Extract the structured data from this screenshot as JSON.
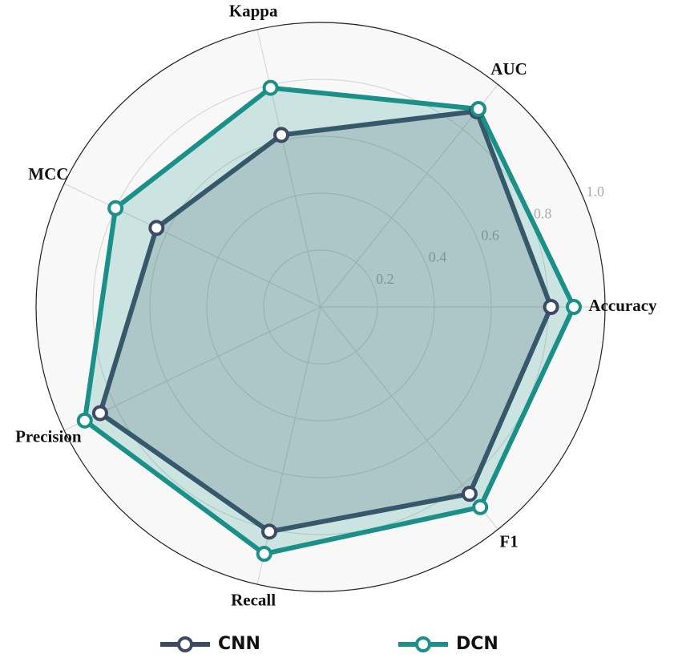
{
  "chart_data": {
    "type": "radar",
    "categories": [
      "Accuracy",
      "AUC",
      "Kappa",
      "MCC",
      "Precision",
      "Recall",
      "F1"
    ],
    "series": [
      {
        "name": "CNN",
        "color": "#3d4a63",
        "values": [
          0.81,
          0.88,
          0.62,
          0.64,
          0.86,
          0.81,
          0.84
        ]
      },
      {
        "name": "DCN",
        "color": "#1a9088",
        "values": [
          0.89,
          0.89,
          0.79,
          0.8,
          0.92,
          0.89,
          0.9
        ]
      }
    ],
    "rlim": [
      0,
      1
    ],
    "rticks": [
      0.2,
      0.4,
      0.6,
      0.8,
      {
        "value": 1,
        "label": "1.0"
      }
    ],
    "grid": true
  }
}
